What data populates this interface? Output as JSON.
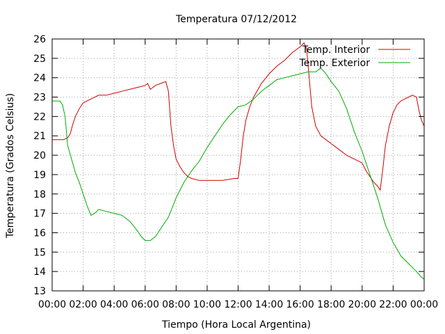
{
  "chart_data": {
    "type": "line",
    "title": "Temperatura 07/12/2012",
    "xlabel": "Tiempo (Hora Local Argentina)",
    "ylabel": "Temperatura (Grados Celsius)",
    "xlim": [
      "00:00",
      "24:00"
    ],
    "ylim": [
      13,
      26
    ],
    "x_tick_labels": [
      "00:00",
      "02:00",
      "04:00",
      "06:00",
      "08:00",
      "10:00",
      "12:00",
      "14:00",
      "16:00",
      "18:00",
      "20:00",
      "22:00",
      "00:00"
    ],
    "y_ticks": [
      13,
      14,
      15,
      16,
      17,
      18,
      19,
      20,
      21,
      22,
      23,
      24,
      25,
      26
    ],
    "grid": true,
    "legend_position": "top-right",
    "colors": {
      "Temp. Interior": "#cc0000",
      "Temp. Exterior": "#00aa00"
    },
    "series": [
      {
        "name": "Temp. Interior",
        "points": [
          [
            "00:00",
            20.8
          ],
          [
            "00:45",
            20.8
          ],
          [
            "01:00",
            20.9
          ],
          [
            "01:10",
            21.1
          ],
          [
            "01:20",
            21.6
          ],
          [
            "01:30",
            22.0
          ],
          [
            "01:45",
            22.4
          ],
          [
            "02:00",
            22.7
          ],
          [
            "02:15",
            22.8
          ],
          [
            "02:30",
            22.9
          ],
          [
            "03:00",
            23.1
          ],
          [
            "03:30",
            23.1
          ],
          [
            "04:00",
            23.2
          ],
          [
            "04:30",
            23.3
          ],
          [
            "05:00",
            23.4
          ],
          [
            "05:30",
            23.5
          ],
          [
            "06:00",
            23.6
          ],
          [
            "06:10",
            23.7
          ],
          [
            "06:20",
            23.4
          ],
          [
            "06:40",
            23.6
          ],
          [
            "07:00",
            23.7
          ],
          [
            "07:20",
            23.8
          ],
          [
            "07:30",
            23.3
          ],
          [
            "07:40",
            21.5
          ],
          [
            "07:50",
            20.5
          ],
          [
            "08:00",
            19.8
          ],
          [
            "08:15",
            19.4
          ],
          [
            "08:30",
            19.1
          ],
          [
            "08:45",
            18.9
          ],
          [
            "09:00",
            18.8
          ],
          [
            "09:30",
            18.7
          ],
          [
            "10:00",
            18.7
          ],
          [
            "11:00",
            18.7
          ],
          [
            "11:45",
            18.8
          ],
          [
            "12:00",
            18.8
          ],
          [
            "12:10",
            19.8
          ],
          [
            "12:20",
            21.0
          ],
          [
            "12:30",
            21.8
          ],
          [
            "12:45",
            22.5
          ],
          [
            "13:00",
            23.0
          ],
          [
            "13:30",
            23.7
          ],
          [
            "14:00",
            24.2
          ],
          [
            "14:30",
            24.6
          ],
          [
            "15:00",
            24.9
          ],
          [
            "15:30",
            25.3
          ],
          [
            "16:00",
            25.6
          ],
          [
            "16:15",
            25.8
          ],
          [
            "16:25",
            25.5
          ],
          [
            "16:35",
            24.0
          ],
          [
            "16:45",
            22.5
          ],
          [
            "17:00",
            21.5
          ],
          [
            "17:20",
            21.0
          ],
          [
            "17:40",
            20.8
          ],
          [
            "18:00",
            20.6
          ],
          [
            "18:30",
            20.3
          ],
          [
            "19:00",
            20.0
          ],
          [
            "19:30",
            19.8
          ],
          [
            "20:00",
            19.6
          ],
          [
            "20:15",
            19.2
          ],
          [
            "20:30",
            18.9
          ],
          [
            "20:45",
            18.6
          ],
          [
            "21:00",
            18.4
          ],
          [
            "21:10",
            18.2
          ],
          [
            "21:20",
            19.3
          ],
          [
            "21:30",
            20.5
          ],
          [
            "21:45",
            21.5
          ],
          [
            "22:00",
            22.2
          ],
          [
            "22:15",
            22.6
          ],
          [
            "22:30",
            22.8
          ],
          [
            "22:45",
            22.9
          ],
          [
            "23:00",
            23.0
          ],
          [
            "23:15",
            23.1
          ],
          [
            "23:30",
            23.0
          ],
          [
            "23:40",
            22.3
          ],
          [
            "23:50",
            21.8
          ],
          [
            "24:00",
            21.5
          ]
        ]
      },
      {
        "name": "Temp. Exterior",
        "points": [
          [
            "00:00",
            22.8
          ],
          [
            "00:30",
            22.8
          ],
          [
            "00:40",
            22.6
          ],
          [
            "00:50",
            22.0
          ],
          [
            "01:00",
            20.5
          ],
          [
            "01:15",
            19.8
          ],
          [
            "01:30",
            19.1
          ],
          [
            "01:45",
            18.6
          ],
          [
            "02:00",
            18.0
          ],
          [
            "02:15",
            17.4
          ],
          [
            "02:30",
            16.9
          ],
          [
            "02:45",
            17.0
          ],
          [
            "03:00",
            17.2
          ],
          [
            "03:30",
            17.1
          ],
          [
            "04:00",
            17.0
          ],
          [
            "04:30",
            16.9
          ],
          [
            "05:00",
            16.6
          ],
          [
            "05:30",
            16.1
          ],
          [
            "05:45",
            15.8
          ],
          [
            "06:00",
            15.6
          ],
          [
            "06:20",
            15.6
          ],
          [
            "06:40",
            15.8
          ],
          [
            "07:00",
            16.2
          ],
          [
            "07:30",
            16.8
          ],
          [
            "08:00",
            17.8
          ],
          [
            "08:30",
            18.6
          ],
          [
            "09:00",
            19.2
          ],
          [
            "09:30",
            19.7
          ],
          [
            "10:00",
            20.4
          ],
          [
            "10:30",
            21.0
          ],
          [
            "11:00",
            21.6
          ],
          [
            "11:30",
            22.1
          ],
          [
            "12:00",
            22.5
          ],
          [
            "12:30",
            22.6
          ],
          [
            "13:00",
            22.9
          ],
          [
            "13:30",
            23.3
          ],
          [
            "14:00",
            23.6
          ],
          [
            "14:30",
            23.9
          ],
          [
            "15:00",
            24.0
          ],
          [
            "15:30",
            24.1
          ],
          [
            "16:00",
            24.2
          ],
          [
            "16:30",
            24.3
          ],
          [
            "17:00",
            24.3
          ],
          [
            "17:20",
            24.5
          ],
          [
            "17:40",
            24.2
          ],
          [
            "18:00",
            23.8
          ],
          [
            "18:30",
            23.3
          ],
          [
            "19:00",
            22.4
          ],
          [
            "19:30",
            21.2
          ],
          [
            "20:00",
            20.2
          ],
          [
            "20:30",
            19.0
          ],
          [
            "21:00",
            17.8
          ],
          [
            "21:30",
            16.4
          ],
          [
            "22:00",
            15.5
          ],
          [
            "22:30",
            14.8
          ],
          [
            "23:00",
            14.4
          ],
          [
            "23:30",
            14.0
          ],
          [
            "23:50",
            13.7
          ],
          [
            "24:00",
            13.6
          ]
        ]
      }
    ]
  }
}
